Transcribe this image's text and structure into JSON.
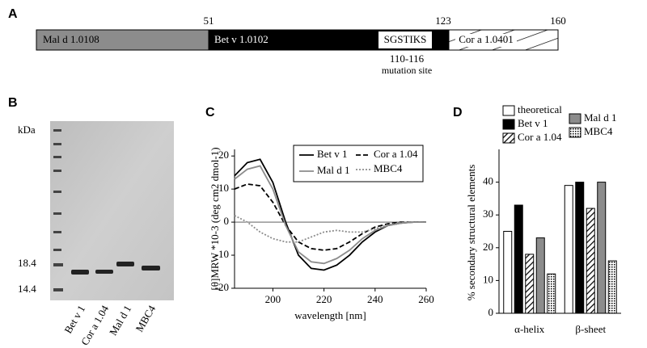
{
  "panel_a": {
    "letter": "A",
    "positions": [
      "51",
      "123",
      "160"
    ],
    "segments": [
      "Mal d 1.0108",
      "Bet v 1.0102",
      "SGSTIKS",
      "Cor a 1.0401"
    ],
    "site": "110-116",
    "site_note": "mutation site"
  },
  "panel_b": {
    "letter": "B",
    "unit": "kDa",
    "markers": [
      "18.4",
      "14.4"
    ],
    "lanes": [
      "Bet v 1",
      "Cor a 1.04",
      "Mal d 1",
      "MBC4"
    ]
  },
  "panel_c": {
    "letter": "C"
  },
  "panel_d": {
    "letter": "D"
  },
  "chart_data": [
    {
      "type": "line",
      "x_label": "wavelength [nm]",
      "y_label": "[θ]MRW *10-3 (deg cm2 dmol-1)",
      "x": [
        185,
        190,
        195,
        200,
        205,
        210,
        215,
        220,
        225,
        230,
        235,
        240,
        245,
        250,
        255,
        260
      ],
      "series": [
        {
          "name": "Bet v 1",
          "color": "#000000",
          "dash": "solid",
          "values": [
            14,
            18,
            19,
            12,
            0,
            -10,
            -14,
            -14.5,
            -13,
            -10,
            -6,
            -3,
            -1,
            -0.3,
            0,
            0
          ]
        },
        {
          "name": "Cor a 1.04",
          "color": "#000000",
          "dash": "dashed",
          "values": [
            10,
            11.5,
            11,
            6,
            -1,
            -6,
            -8,
            -8.5,
            -8,
            -6,
            -3.5,
            -1.5,
            -0.5,
            0,
            0,
            0
          ]
        },
        {
          "name": "Mal d 1",
          "color": "#8c8c8c",
          "dash": "solid",
          "values": [
            13,
            16,
            17,
            10,
            -1,
            -9,
            -12,
            -12.5,
            -11,
            -8.5,
            -5,
            -2.5,
            -1,
            -0.3,
            0,
            0
          ]
        },
        {
          "name": "MBC4",
          "color": "#8c8c8c",
          "dash": "dotted",
          "values": [
            2,
            0,
            -3,
            -5,
            -6,
            -6,
            -4.5,
            -3,
            -2.5,
            -3,
            -3,
            -2,
            -0.8,
            -0.2,
            0,
            0
          ]
        }
      ],
      "xlim": [
        185,
        260
      ],
      "xticks": [
        200,
        220,
        240,
        260
      ],
      "ylim": [
        -20,
        22
      ],
      "yticks": [
        -20,
        -10,
        0,
        10,
        20
      ],
      "legend": "top-right"
    },
    {
      "type": "bar",
      "y_label": "% secondary structural elements",
      "categories": [
        "α-helix",
        "β-sheet"
      ],
      "series": [
        {
          "name": "theoretical",
          "color": "#ffffff",
          "fill": "solid",
          "values": [
            25,
            39
          ]
        },
        {
          "name": "Bet v 1",
          "color": "#000000",
          "fill": "solid",
          "values": [
            33,
            40
          ]
        },
        {
          "name": "Cor a 1.04",
          "color": "#000000",
          "fill": "hatch",
          "values": [
            18,
            32
          ]
        },
        {
          "name": "Mal d 1",
          "color": "#8c8c8c",
          "fill": "solid",
          "values": [
            23,
            40
          ]
        },
        {
          "name": "MBC4",
          "color": "#000000",
          "fill": "dots",
          "values": [
            12,
            16
          ]
        }
      ],
      "ylim": [
        0,
        50
      ],
      "yticks": [
        0,
        10,
        20,
        30,
        40
      ],
      "legend": "top"
    }
  ]
}
